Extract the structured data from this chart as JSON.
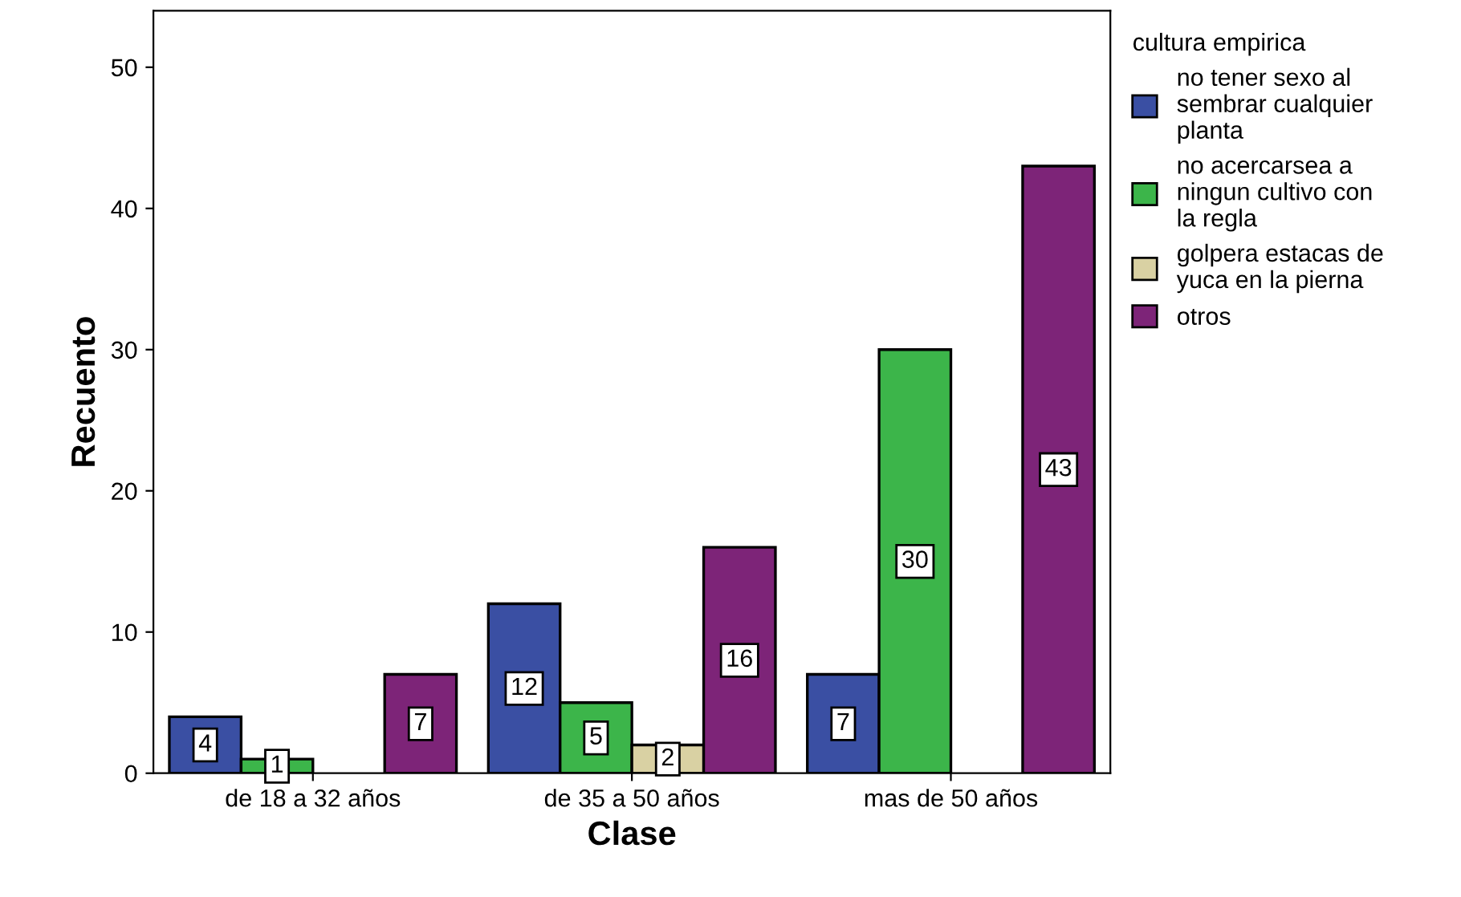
{
  "chart_data": {
    "type": "bar",
    "xlabel": "Clase",
    "ylabel": "Recuento",
    "legend_title": "cultura empirica",
    "categories": [
      "de 18 a 32 años",
      "de 35 a 50 años",
      "mas de 50 años"
    ],
    "series": [
      {
        "name": "no tener sexo al sembrar cualquier planta",
        "color": "#3a4fa3",
        "values": [
          4,
          12,
          7
        ]
      },
      {
        "name": "no acercarsea a ningun cultivo con la regla",
        "color": "#3cb54a",
        "values": [
          1,
          5,
          30
        ]
      },
      {
        "name": "golpera estacas de yuca en la pierna",
        "color": "#d9d1a3",
        "values": [
          null,
          2,
          null
        ]
      },
      {
        "name": "otros",
        "color": "#7d2478",
        "values": [
          7,
          16,
          43
        ]
      }
    ],
    "ylim": [
      0,
      54
    ],
    "yticks": [
      0,
      10,
      20,
      30,
      40,
      50
    ],
    "data_labels": true,
    "legend": "right",
    "grid": false
  }
}
